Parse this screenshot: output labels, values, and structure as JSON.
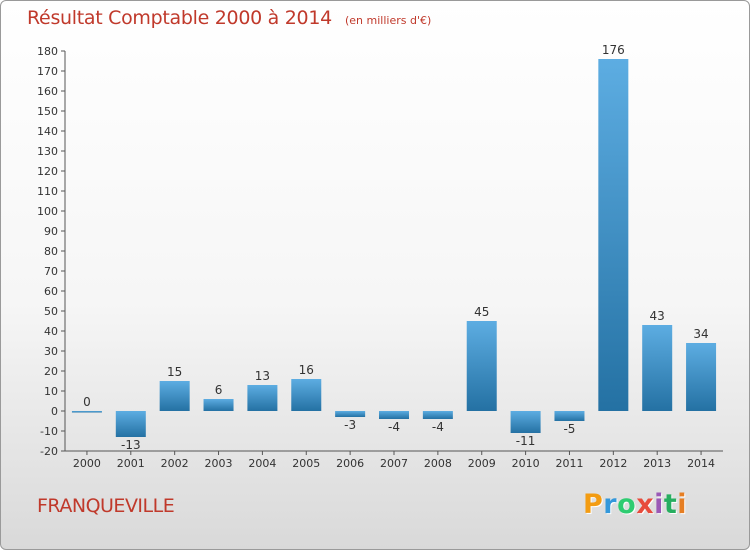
{
  "header": {
    "title": "Résultat Comptable 2000 à 2014",
    "subtitle": "(en milliers d'€)"
  },
  "footer": {
    "place": "FRANQUEVILLE",
    "logo": [
      "P",
      "r",
      "o",
      "x",
      "i",
      "t",
      "i"
    ],
    "logo_colors": [
      "#f39c12",
      "#3498db",
      "#2ecc71",
      "#e74c3c",
      "#9b59b6",
      "#27ae60",
      "#e67e22"
    ]
  },
  "chart_data": {
    "type": "bar",
    "title": "Résultat Comptable 2000 à 2014",
    "subtitle": "(en milliers d'€)",
    "xlabel": "",
    "ylabel": "",
    "categories": [
      "2000",
      "2001",
      "2002",
      "2003",
      "2004",
      "2005",
      "2006",
      "2007",
      "2008",
      "2009",
      "2010",
      "2011",
      "2012",
      "2013",
      "2014"
    ],
    "values": [
      0,
      -13,
      15,
      6,
      13,
      16,
      -3,
      -4,
      -4,
      45,
      -11,
      -5,
      176,
      43,
      34
    ],
    "labels": [
      "0",
      "-13",
      "15",
      "6",
      "13",
      "16",
      "-3",
      "-4",
      "-4",
      "45",
      "-11",
      "-5",
      "176",
      "43",
      "34"
    ],
    "ylim": [
      -20,
      180
    ],
    "yticks": [
      -20,
      -10,
      0,
      10,
      20,
      30,
      40,
      50,
      60,
      70,
      80,
      90,
      100,
      110,
      120,
      130,
      140,
      150,
      160,
      170,
      180
    ],
    "grid": false,
    "bar_color_light": "#5dade2",
    "bar_color_dark": "#2471a3"
  }
}
